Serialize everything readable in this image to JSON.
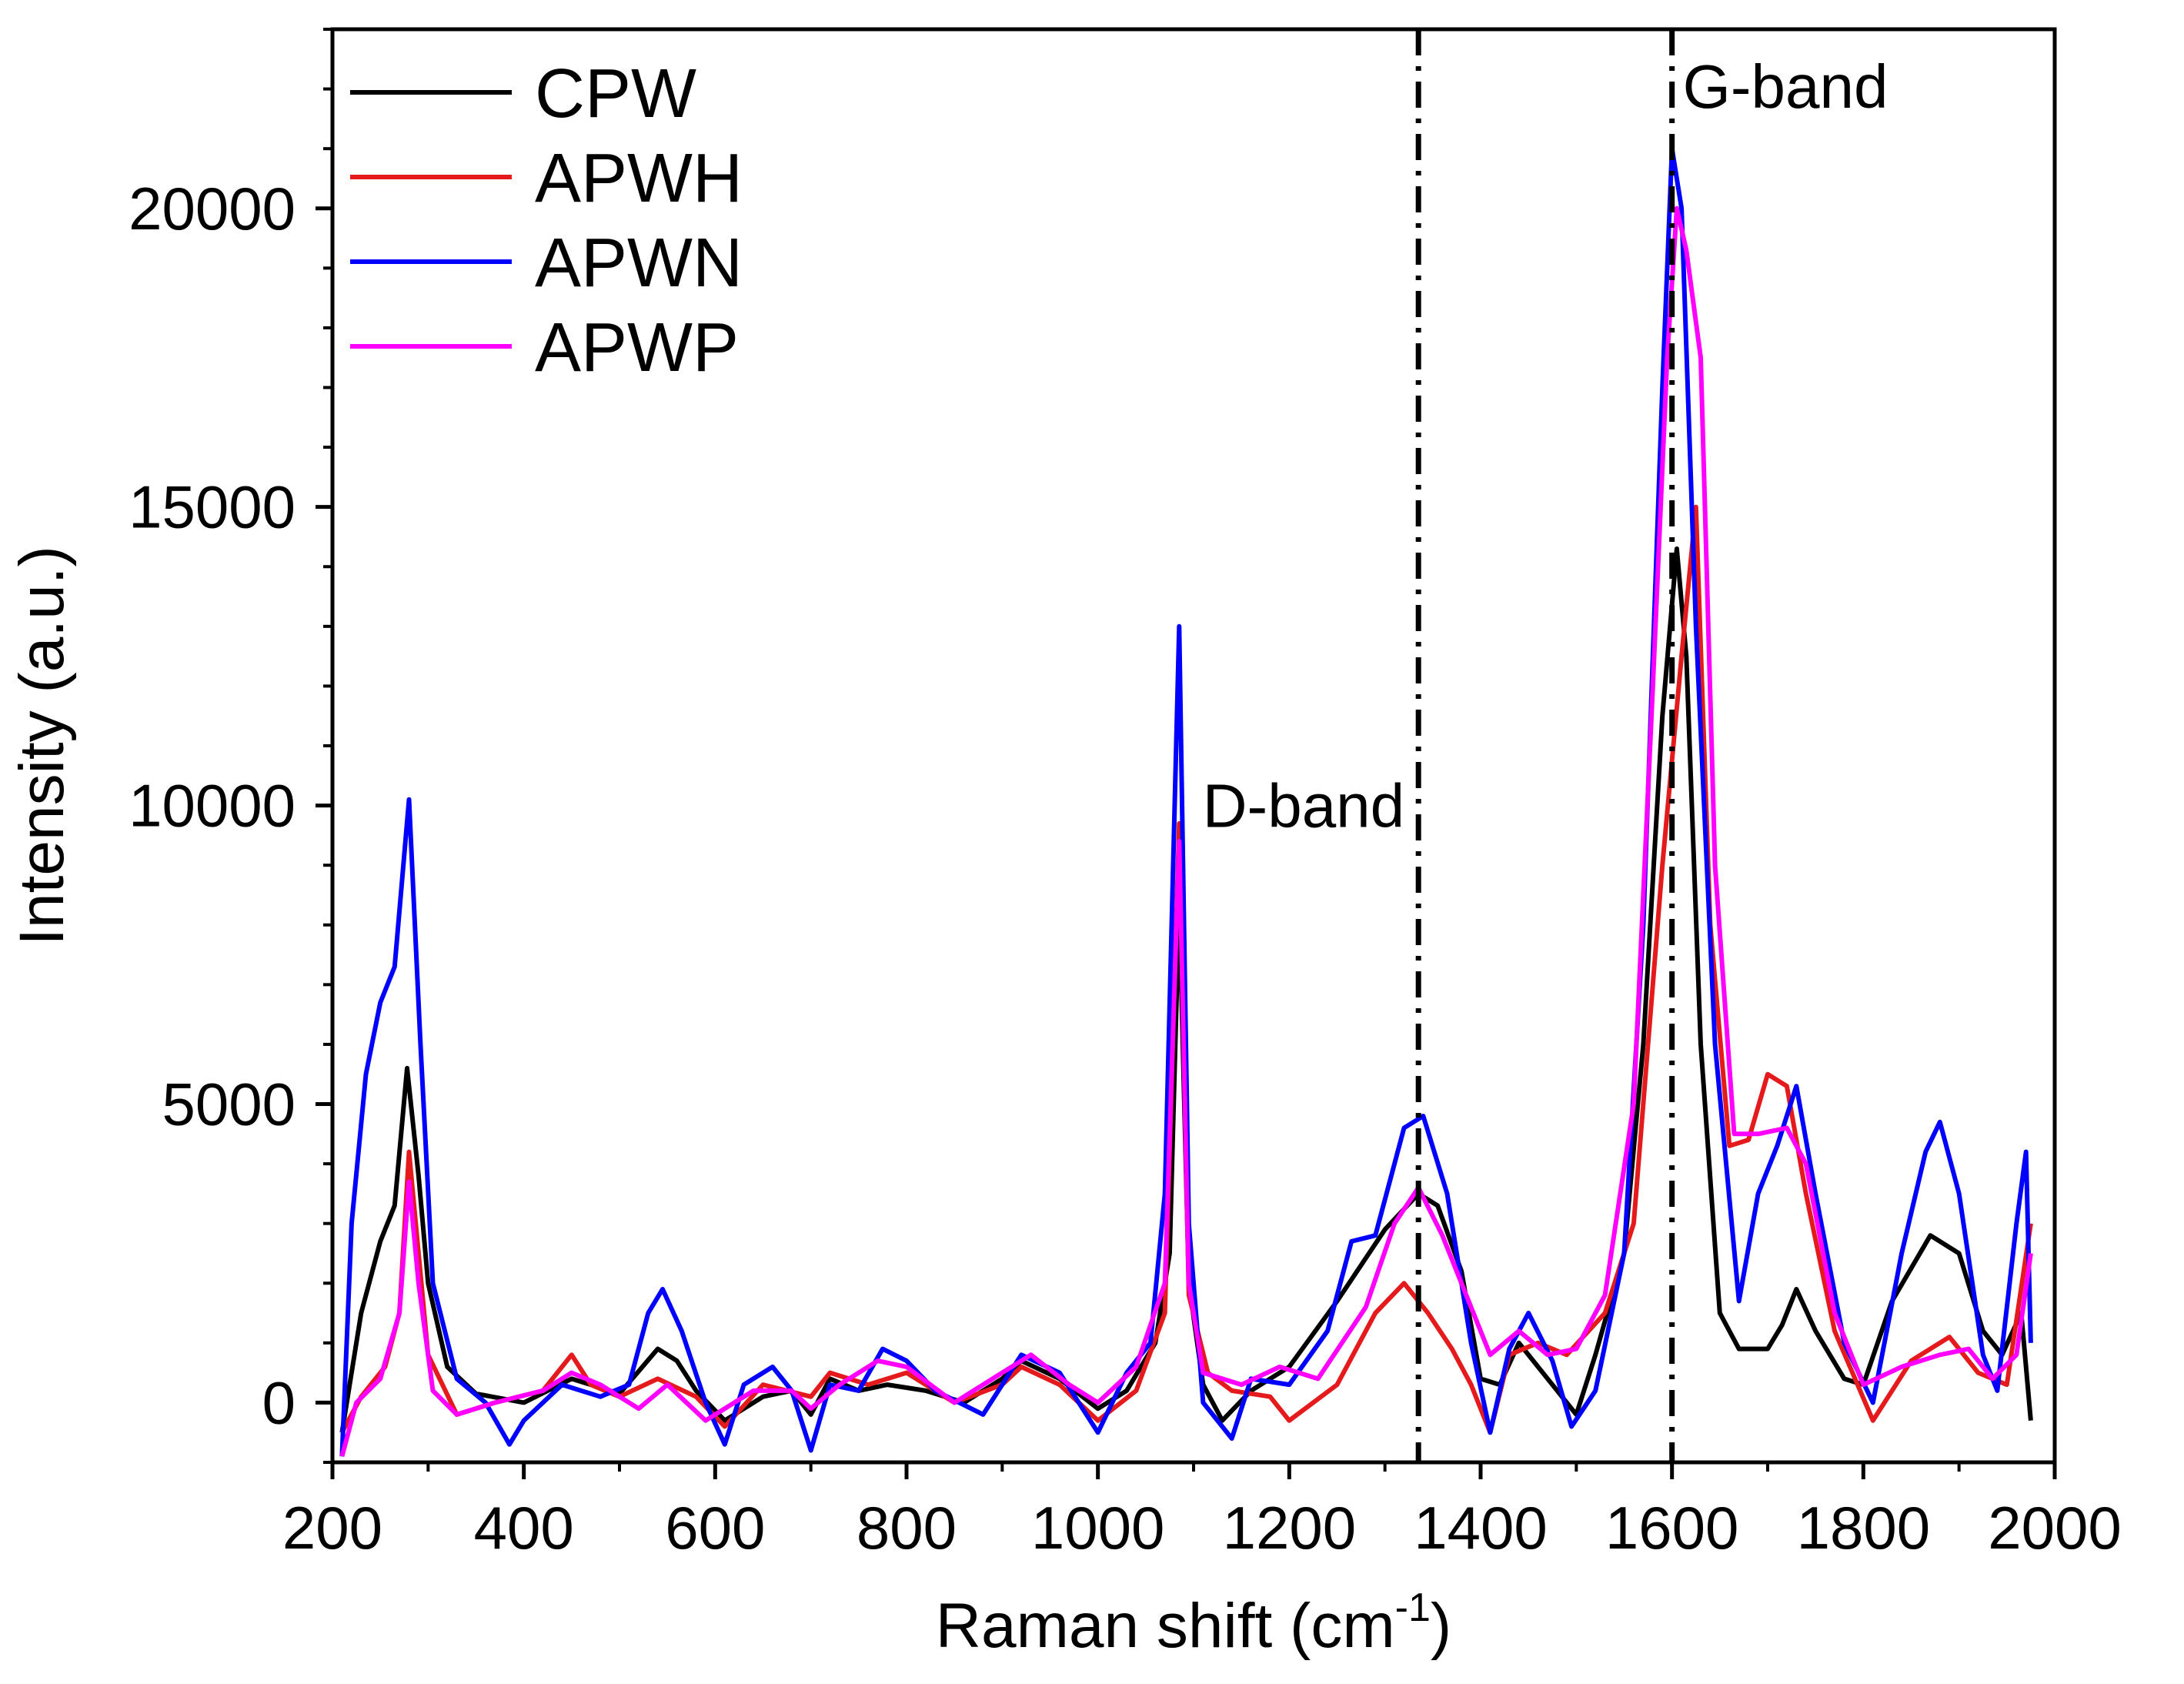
{
  "chart_data": {
    "type": "line",
    "title": "",
    "xlabel": "Raman shift (cm",
    "xlabel_sup": "-1",
    "xlabel_end": ")",
    "ylabel": "Intensity (a.u.)",
    "xlim": [
      200,
      2000
    ],
    "ylim": [
      -1000,
      23000
    ],
    "x_ticks": [
      200,
      400,
      600,
      800,
      1000,
      1200,
      1400,
      1600,
      1800,
      2000
    ],
    "x_tick_labels": [
      "200",
      "400",
      "600",
      "800",
      "1000",
      "1200",
      "1400",
      "1600",
      "1800",
      "2000"
    ],
    "y_ticks": [
      0,
      5000,
      10000,
      15000,
      20000
    ],
    "y_tick_labels": [
      "0",
      "5000",
      "10000",
      "15000",
      "20000"
    ],
    "legend_position": "top-left",
    "reference_lines": [
      {
        "x": 1335,
        "label": "D-band",
        "label_anchor": "left"
      },
      {
        "x": 1600,
        "label": "G-band",
        "label_anchor": "right"
      }
    ],
    "series": [
      {
        "name": "CPW",
        "color": "#000000",
        "points": [
          [
            210,
            -500
          ],
          [
            230,
            1500
          ],
          [
            250,
            2700
          ],
          [
            265,
            3300
          ],
          [
            278,
            5600
          ],
          [
            290,
            3800
          ],
          [
            300,
            2000
          ],
          [
            320,
            600
          ],
          [
            350,
            150
          ],
          [
            400,
            0
          ],
          [
            450,
            400
          ],
          [
            500,
            150
          ],
          [
            540,
            900
          ],
          [
            560,
            700
          ],
          [
            580,
            200
          ],
          [
            610,
            -300
          ],
          [
            650,
            100
          ],
          [
            680,
            200
          ],
          [
            700,
            -200
          ],
          [
            720,
            400
          ],
          [
            750,
            200
          ],
          [
            780,
            300
          ],
          [
            820,
            200
          ],
          [
            860,
            0
          ],
          [
            900,
            400
          ],
          [
            920,
            700
          ],
          [
            960,
            400
          ],
          [
            1000,
            -100
          ],
          [
            1030,
            200
          ],
          [
            1060,
            1000
          ],
          [
            1075,
            2500
          ],
          [
            1085,
            8400
          ],
          [
            1095,
            2000
          ],
          [
            1110,
            300
          ],
          [
            1130,
            -300
          ],
          [
            1160,
            200
          ],
          [
            1200,
            600
          ],
          [
            1250,
            1700
          ],
          [
            1300,
            2900
          ],
          [
            1335,
            3500
          ],
          [
            1355,
            3300
          ],
          [
            1380,
            2200
          ],
          [
            1400,
            400
          ],
          [
            1420,
            300
          ],
          [
            1440,
            1000
          ],
          [
            1460,
            600
          ],
          [
            1480,
            200
          ],
          [
            1500,
            -200
          ],
          [
            1520,
            800
          ],
          [
            1550,
            2500
          ],
          [
            1570,
            6000
          ],
          [
            1590,
            11500
          ],
          [
            1605,
            14300
          ],
          [
            1615,
            12500
          ],
          [
            1630,
            6000
          ],
          [
            1650,
            1500
          ],
          [
            1670,
            900
          ],
          [
            1700,
            900
          ],
          [
            1715,
            1300
          ],
          [
            1730,
            1900
          ],
          [
            1750,
            1200
          ],
          [
            1780,
            400
          ],
          [
            1800,
            300
          ],
          [
            1830,
            1700
          ],
          [
            1870,
            2800
          ],
          [
            1900,
            2500
          ],
          [
            1925,
            1200
          ],
          [
            1945,
            800
          ],
          [
            1965,
            1500
          ],
          [
            1975,
            -300
          ]
        ]
      },
      {
        "name": "APWH",
        "color": "#e41a1c",
        "points": [
          [
            210,
            -500
          ],
          [
            230,
            100
          ],
          [
            255,
            600
          ],
          [
            270,
            1500
          ],
          [
            280,
            4200
          ],
          [
            290,
            2500
          ],
          [
            300,
            800
          ],
          [
            330,
            -200
          ],
          [
            370,
            0
          ],
          [
            420,
            200
          ],
          [
            450,
            800
          ],
          [
            470,
            300
          ],
          [
            500,
            100
          ],
          [
            540,
            400
          ],
          [
            580,
            100
          ],
          [
            610,
            -400
          ],
          [
            650,
            300
          ],
          [
            700,
            100
          ],
          [
            720,
            500
          ],
          [
            760,
            300
          ],
          [
            800,
            500
          ],
          [
            850,
            0
          ],
          [
            900,
            300
          ],
          [
            920,
            600
          ],
          [
            960,
            300
          ],
          [
            1000,
            -300
          ],
          [
            1040,
            200
          ],
          [
            1070,
            1500
          ],
          [
            1085,
            9700
          ],
          [
            1095,
            1800
          ],
          [
            1115,
            500
          ],
          [
            1140,
            200
          ],
          [
            1180,
            100
          ],
          [
            1200,
            -300
          ],
          [
            1250,
            300
          ],
          [
            1290,
            1500
          ],
          [
            1320,
            2000
          ],
          [
            1345,
            1500
          ],
          [
            1370,
            900
          ],
          [
            1390,
            300
          ],
          [
            1410,
            -500
          ],
          [
            1430,
            800
          ],
          [
            1460,
            1000
          ],
          [
            1490,
            800
          ],
          [
            1530,
            1500
          ],
          [
            1560,
            3000
          ],
          [
            1590,
            9000
          ],
          [
            1610,
            12500
          ],
          [
            1625,
            15000
          ],
          [
            1640,
            8000
          ],
          [
            1660,
            4300
          ],
          [
            1680,
            4400
          ],
          [
            1700,
            5500
          ],
          [
            1720,
            5300
          ],
          [
            1740,
            3500
          ],
          [
            1770,
            1200
          ],
          [
            1810,
            -300
          ],
          [
            1850,
            700
          ],
          [
            1890,
            1100
          ],
          [
            1920,
            500
          ],
          [
            1950,
            300
          ],
          [
            1975,
            3000
          ]
        ]
      },
      {
        "name": "APWN",
        "color": "#0000ff",
        "points": [
          [
            210,
            -900
          ],
          [
            220,
            3000
          ],
          [
            235,
            5500
          ],
          [
            250,
            6700
          ],
          [
            265,
            7300
          ],
          [
            280,
            10100
          ],
          [
            292,
            6000
          ],
          [
            305,
            2000
          ],
          [
            330,
            400
          ],
          [
            360,
            0
          ],
          [
            385,
            -700
          ],
          [
            400,
            -300
          ],
          [
            440,
            300
          ],
          [
            480,
            100
          ],
          [
            510,
            300
          ],
          [
            530,
            1500
          ],
          [
            545,
            1900
          ],
          [
            565,
            1200
          ],
          [
            590,
            0
          ],
          [
            610,
            -700
          ],
          [
            630,
            300
          ],
          [
            660,
            600
          ],
          [
            680,
            200
          ],
          [
            700,
            -800
          ],
          [
            720,
            300
          ],
          [
            750,
            200
          ],
          [
            775,
            900
          ],
          [
            800,
            700
          ],
          [
            830,
            200
          ],
          [
            880,
            -200
          ],
          [
            920,
            800
          ],
          [
            960,
            500
          ],
          [
            1000,
            -500
          ],
          [
            1030,
            500
          ],
          [
            1055,
            1000
          ],
          [
            1070,
            3500
          ],
          [
            1085,
            13000
          ],
          [
            1095,
            3000
          ],
          [
            1110,
            0
          ],
          [
            1140,
            -600
          ],
          [
            1160,
            400
          ],
          [
            1200,
            300
          ],
          [
            1240,
            1200
          ],
          [
            1265,
            2700
          ],
          [
            1290,
            2800
          ],
          [
            1320,
            4600
          ],
          [
            1340,
            4800
          ],
          [
            1365,
            3500
          ],
          [
            1390,
            1000
          ],
          [
            1410,
            -500
          ],
          [
            1430,
            900
          ],
          [
            1450,
            1500
          ],
          [
            1475,
            700
          ],
          [
            1495,
            -400
          ],
          [
            1520,
            200
          ],
          [
            1550,
            2500
          ],
          [
            1570,
            8000
          ],
          [
            1590,
            17000
          ],
          [
            1600,
            21000
          ],
          [
            1610,
            20000
          ],
          [
            1625,
            13000
          ],
          [
            1645,
            6000
          ],
          [
            1670,
            1700
          ],
          [
            1690,
            3500
          ],
          [
            1710,
            4300
          ],
          [
            1730,
            5300
          ],
          [
            1750,
            3500
          ],
          [
            1780,
            1000
          ],
          [
            1810,
            0
          ],
          [
            1840,
            2500
          ],
          [
            1865,
            4200
          ],
          [
            1880,
            4700
          ],
          [
            1900,
            3500
          ],
          [
            1925,
            800
          ],
          [
            1940,
            200
          ],
          [
            1960,
            3000
          ],
          [
            1970,
            4200
          ],
          [
            1975,
            1000
          ]
        ]
      },
      {
        "name": "APWP",
        "color": "#ff00ff",
        "points": [
          [
            210,
            -900
          ],
          [
            225,
            0
          ],
          [
            250,
            400
          ],
          [
            270,
            1500
          ],
          [
            280,
            3700
          ],
          [
            290,
            2000
          ],
          [
            305,
            200
          ],
          [
            330,
            -200
          ],
          [
            370,
            0
          ],
          [
            420,
            200
          ],
          [
            450,
            500
          ],
          [
            480,
            300
          ],
          [
            520,
            -100
          ],
          [
            550,
            300
          ],
          [
            590,
            -300
          ],
          [
            640,
            200
          ],
          [
            680,
            200
          ],
          [
            700,
            -100
          ],
          [
            730,
            300
          ],
          [
            770,
            700
          ],
          [
            800,
            600
          ],
          [
            850,
            0
          ],
          [
            900,
            500
          ],
          [
            930,
            800
          ],
          [
            970,
            300
          ],
          [
            1000,
            0
          ],
          [
            1040,
            600
          ],
          [
            1070,
            2000
          ],
          [
            1085,
            9400
          ],
          [
            1095,
            2000
          ],
          [
            1110,
            500
          ],
          [
            1150,
            300
          ],
          [
            1190,
            600
          ],
          [
            1230,
            400
          ],
          [
            1280,
            1600
          ],
          [
            1310,
            3000
          ],
          [
            1335,
            3600
          ],
          [
            1360,
            2800
          ],
          [
            1385,
            1800
          ],
          [
            1410,
            800
          ],
          [
            1440,
            1200
          ],
          [
            1470,
            800
          ],
          [
            1500,
            900
          ],
          [
            1530,
            1800
          ],
          [
            1560,
            5000
          ],
          [
            1580,
            12000
          ],
          [
            1595,
            17500
          ],
          [
            1605,
            20000
          ],
          [
            1615,
            19300
          ],
          [
            1630,
            17500
          ],
          [
            1645,
            9000
          ],
          [
            1665,
            4500
          ],
          [
            1690,
            4500
          ],
          [
            1720,
            4600
          ],
          [
            1740,
            4000
          ],
          [
            1770,
            1500
          ],
          [
            1800,
            300
          ],
          [
            1840,
            600
          ],
          [
            1880,
            800
          ],
          [
            1910,
            900
          ],
          [
            1935,
            400
          ],
          [
            1960,
            800
          ],
          [
            1975,
            2500
          ]
        ]
      }
    ]
  }
}
